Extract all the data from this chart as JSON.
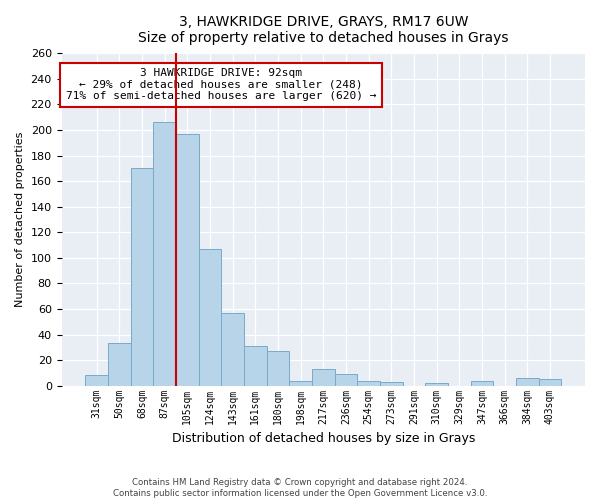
{
  "title": "3, HAWKRIDGE DRIVE, GRAYS, RM17 6UW",
  "subtitle": "Size of property relative to detached houses in Grays",
  "xlabel": "Distribution of detached houses by size in Grays",
  "ylabel": "Number of detached properties",
  "categories": [
    "31sqm",
    "50sqm",
    "68sqm",
    "87sqm",
    "105sqm",
    "124sqm",
    "143sqm",
    "161sqm",
    "180sqm",
    "198sqm",
    "217sqm",
    "236sqm",
    "254sqm",
    "273sqm",
    "291sqm",
    "310sqm",
    "329sqm",
    "347sqm",
    "366sqm",
    "384sqm",
    "403sqm"
  ],
  "values": [
    8,
    33,
    170,
    206,
    197,
    107,
    57,
    31,
    27,
    4,
    13,
    9,
    4,
    3,
    0,
    2,
    0,
    4,
    0,
    6,
    5
  ],
  "bar_color": "#b8d4e8",
  "bar_edge_color": "#7aaac8",
  "vline_color": "#cc0000",
  "vline_x_index": 3,
  "ylim": [
    0,
    260
  ],
  "yticks": [
    0,
    20,
    40,
    60,
    80,
    100,
    120,
    140,
    160,
    180,
    200,
    220,
    240,
    260
  ],
  "annotation_title": "3 HAWKRIDGE DRIVE: 92sqm",
  "annotation_line1": "← 29% of detached houses are smaller (248)",
  "annotation_line2": "71% of semi-detached houses are larger (620) →",
  "annotation_box_color": "#ffffff",
  "annotation_box_edge": "#cc0000",
  "footer_line1": "Contains HM Land Registry data © Crown copyright and database right 2024.",
  "footer_line2": "Contains public sector information licensed under the Open Government Licence v3.0.",
  "bg_color": "#e8eef4",
  "plot_bg": "#ffffff"
}
